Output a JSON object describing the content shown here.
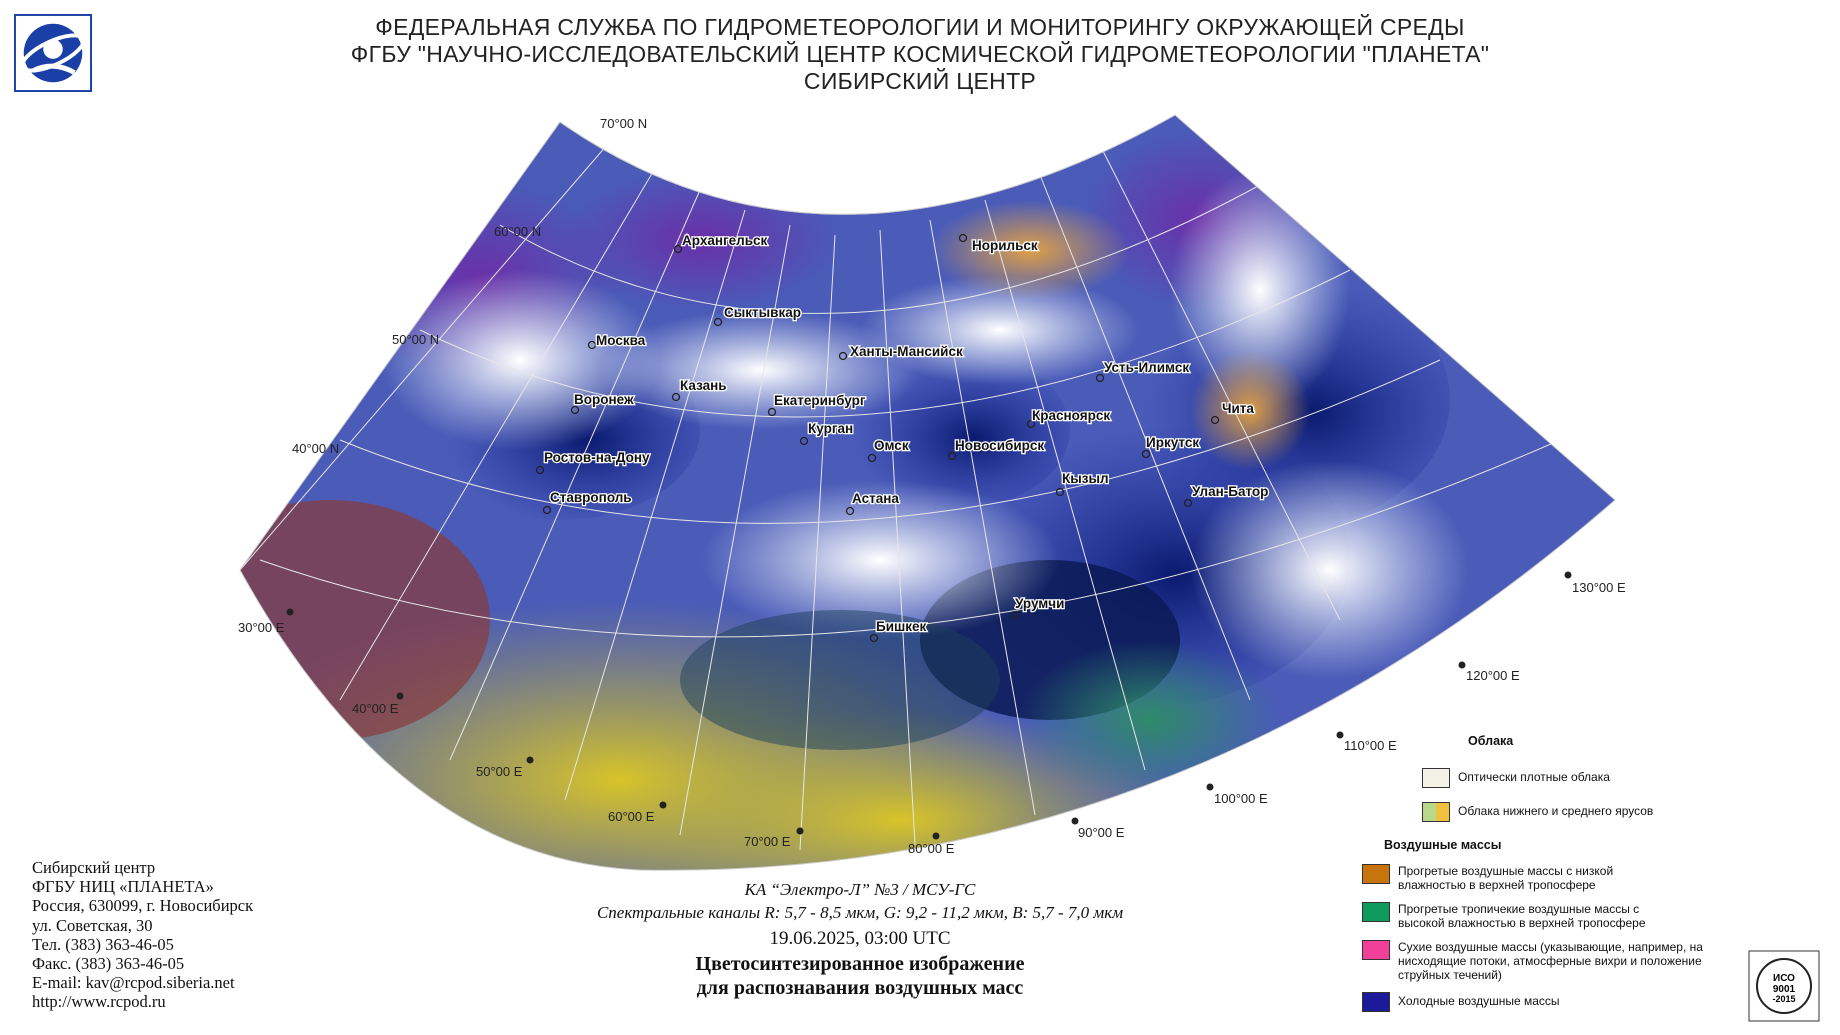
{
  "header": {
    "line1": "ФЕДЕРАЛЬНАЯ СЛУЖБА ПО ГИДРОМЕТЕОРОЛОГИИ И МОНИТОРИНГУ ОКРУЖАЮЩЕЙ СРЕДЫ",
    "line2": "ФГБУ \"НАУЧНО-ИССЛЕДОВАТЕЛЬСКИЙ ЦЕНТР КОСМИЧЕСКОЙ ГИДРОМЕТЕОРОЛОГИИ \"ПЛАНЕТА\"",
    "line3": "СИБИРСКИЙ ЦЕНТР"
  },
  "latitudes": [
    "70°00 N",
    "60°00 N",
    "50°00 N",
    "40°00 N"
  ],
  "longitudes": [
    "30°00 E",
    "40°00 E",
    "50°00 E",
    "60°00 E",
    "70°00 E",
    "80°00 E",
    "90°00 E",
    "100°00 E",
    "110°00 E",
    "120°00 E",
    "130°00 E"
  ],
  "cities": [
    "Архангельск",
    "Норильск",
    "Сыктывкар",
    "Москва",
    "Ханты-Мансийск",
    "Усть-Илимск",
    "Казань",
    "Воронеж",
    "Екатеринбург",
    "Красноярск",
    "Чита",
    "Курган",
    "Омск",
    "Новосибирск",
    "Иркутск",
    "Ростов-на-Дону",
    "Кызыл",
    "Улан-Батор",
    "Ставрополь",
    "Астана",
    "Бишкек",
    "Урумчи"
  ],
  "contact": {
    "org": "Сибирский центр",
    "org2": "ФГБУ НИЦ «ПЛАНЕТА»",
    "address1": "Россия, 630099, г. Новосибирск",
    "address2": "ул. Советская, 30",
    "phone": "Тел. (383) 363-46-05",
    "fax": "Факс. (383) 363-46-05",
    "email": "E-mail: kav@rcpod.siberia.net",
    "web": "http://www.rcpod.ru"
  },
  "caption": {
    "satellite": "КА “Электро-Л” №3 / МСУ-ГС",
    "channels": "Спектральные каналы R: 5,7 - 8,5 мкм, G: 9,2 - 11,2 мкм, B: 5,7 - 7,0 мкм",
    "datetime": "19.06.2025, 03:00 UTC",
    "title1": "Цветосинтезированное изображение",
    "title2": "для распознавания воздушных масс"
  },
  "legend": {
    "clouds_title": "Облака",
    "clouds": [
      {
        "label": "Оптически плотные облака",
        "color": "#f4f2e6"
      },
      {
        "label": "Облака нижнего и среднего ярусов",
        "colors": [
          "#b9d98a",
          "#f0c040"
        ]
      }
    ],
    "airmass_title": "Воздушные массы",
    "airmasses": [
      {
        "label": "Прогретые воздушные массы с низкой влажностью в верхней тропосфере",
        "color": "#c8740c"
      },
      {
        "label": "Прогретые тропичекие воздушные массы с высокой влажностью в верхней тропосфере",
        "color": "#0e9a5a"
      },
      {
        "label": "Сухие воздушные массы (указывающие, например, на нисходящие потоки, атмосферные вихри и положение струйных течений)",
        "color": "#f0409a"
      },
      {
        "label": "Холодные воздушные массы",
        "color": "#1a1a9a"
      }
    ]
  },
  "iso": {
    "line1": "ИСО",
    "line2": "9001",
    "line3": "-2015"
  }
}
